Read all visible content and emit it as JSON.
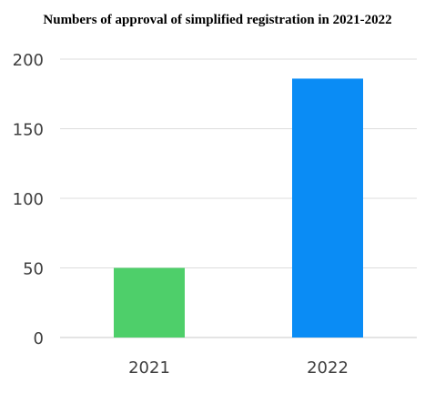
{
  "chart_data": {
    "type": "bar",
    "title": "Numbers of approval of simplified registration in 2021-2022",
    "xlabel": "",
    "ylabel": "",
    "categories": [
      "2021",
      "2022"
    ],
    "values": [
      50,
      186
    ],
    "colors": [
      "#4ECF6A",
      "#0A8CF5"
    ],
    "ylim": [
      0,
      200
    ],
    "yticks": [
      "0",
      "50",
      "100",
      "150",
      "200"
    ],
    "grid": true,
    "legend": "none"
  }
}
